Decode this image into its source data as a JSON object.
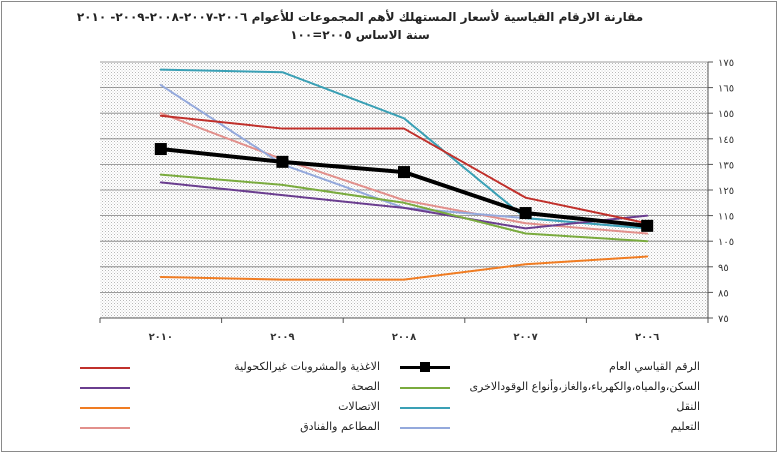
{
  "chart_data": {
    "type": "line",
    "title": "مقارنة الارقام القياسية لأسعار المستهلك لأهم المجموعات  للأعوام ٢٠٠٦-٢٠٠٧-٢٠٠٨-٢٠٠٩- ٢٠١٠",
    "subtitle": "سنة الاساس ٢٠٠٥=١٠٠",
    "categories": [
      "٢٠١٠",
      "٢٠٠٩",
      "٢٠٠٨",
      "٢٠٠٧",
      "٢٠٠٦"
    ],
    "y_ticks": [
      "٧٥",
      "٨٥",
      "٩٥",
      "١٠٥",
      "١١٥",
      "١٢٥",
      "١٣٥",
      "١٤٥",
      "١٥٥",
      "١٦٥",
      "١٧٥"
    ],
    "ylim": [
      75,
      175
    ],
    "grid": true,
    "legend_position": "bottom",
    "series": [
      {
        "name": "الرقم القياسي العام",
        "color": "#000000",
        "values": [
          141,
          136,
          132,
          116,
          111
        ],
        "markers": true,
        "width": 4
      },
      {
        "name": "الاغذية والمشروبات غيرالكحولية",
        "color": "#c0302b",
        "values": [
          154,
          149,
          149,
          122,
          112
        ],
        "markers": false,
        "width": 2
      },
      {
        "name": "السكن،والمياه،والكهرباء،والغاز،وأنواع الوقودالاخرى",
        "color": "#7aab3e",
        "values": [
          131,
          127,
          120,
          108,
          105
        ],
        "markers": false,
        "width": 2
      },
      {
        "name": "الصحة",
        "color": "#6a3d8f",
        "values": [
          128,
          123,
          118,
          110,
          115
        ],
        "markers": false,
        "width": 2
      },
      {
        "name": "النقل",
        "color": "#3aa0b5",
        "values": [
          172,
          171,
          153,
          114,
          110
        ],
        "markers": false,
        "width": 2
      },
      {
        "name": "الاتصالات",
        "color": "#f07c22",
        "values": [
          91,
          90,
          90,
          96,
          99
        ],
        "markers": false,
        "width": 2
      },
      {
        "name": "التعليم",
        "color": "#94a9dc",
        "values": [
          166,
          135,
          118,
          114,
          110
        ],
        "markers": false,
        "width": 2
      },
      {
        "name": "المطاعم والفنادق",
        "color": "#e2908c",
        "values": [
          155,
          137,
          121,
          112,
          108
        ],
        "markers": false,
        "width": 2
      }
    ]
  }
}
